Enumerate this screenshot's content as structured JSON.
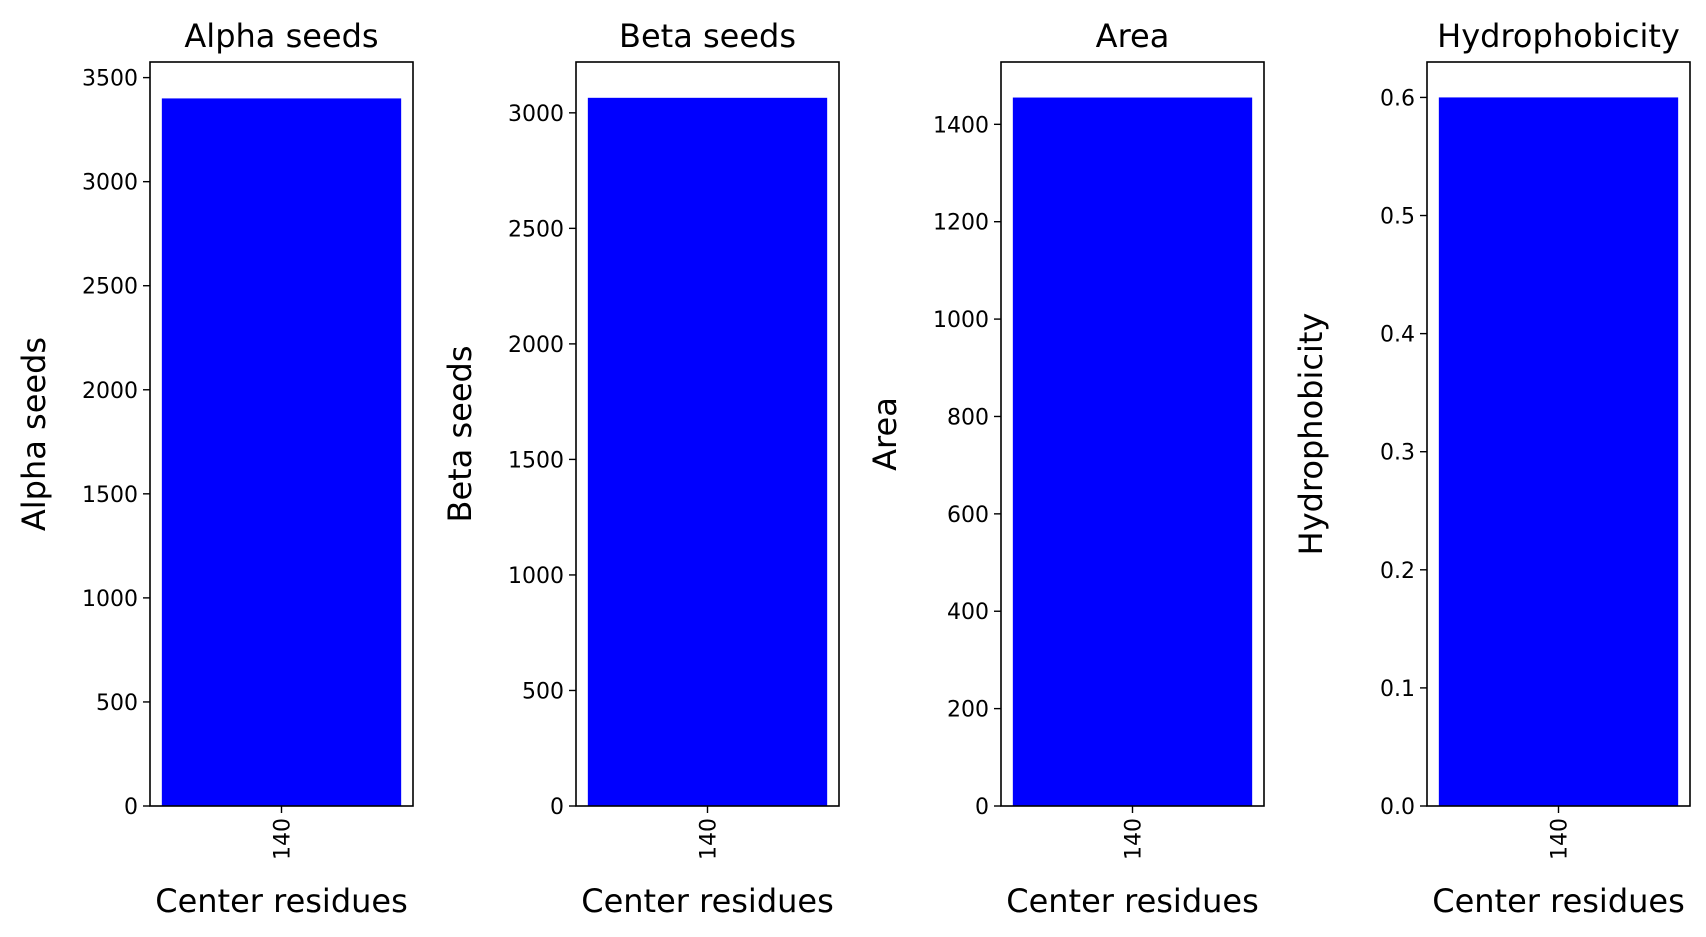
{
  "chart_data": [
    {
      "type": "bar",
      "title": "Alpha seeds",
      "xlabel": "Center residues",
      "ylabel": "Alpha seeds",
      "categories": [
        "140"
      ],
      "values": [
        3400
      ],
      "ylim": [
        0,
        3575
      ],
      "yticks": [
        0,
        500,
        1000,
        1500,
        2000,
        2500,
        3000,
        3500
      ],
      "ytick_labels": [
        "0",
        "500",
        "1000",
        "1500",
        "2000",
        "2500",
        "3000",
        "3500"
      ],
      "bar_color": "#0000ff"
    },
    {
      "type": "bar",
      "title": "Beta seeds",
      "xlabel": "Center residues",
      "ylabel": "Beta seeds",
      "categories": [
        "140"
      ],
      "values": [
        3065
      ],
      "ylim": [
        0,
        3220
      ],
      "yticks": [
        0,
        500,
        1000,
        1500,
        2000,
        2500,
        3000
      ],
      "ytick_labels": [
        "0",
        "500",
        "1000",
        "1500",
        "2000",
        "2500",
        "3000"
      ],
      "bar_color": "#0000ff"
    },
    {
      "type": "bar",
      "title": "Area",
      "xlabel": "Center residues",
      "ylabel": "Area",
      "categories": [
        "140"
      ],
      "values": [
        1455
      ],
      "ylim": [
        0,
        1528
      ],
      "yticks": [
        0,
        200,
        400,
        600,
        800,
        1000,
        1200,
        1400
      ],
      "ytick_labels": [
        "0",
        "200",
        "400",
        "600",
        "800",
        "1000",
        "1200",
        "1400"
      ],
      "bar_color": "#0000ff"
    },
    {
      "type": "bar",
      "title": "Hydrophobicity",
      "xlabel": "Center residues",
      "ylabel": "Hydrophobicity",
      "categories": [
        "140"
      ],
      "values": [
        0.6
      ],
      "ylim": [
        0,
        0.63
      ],
      "yticks": [
        0,
        0.1,
        0.2,
        0.3,
        0.4,
        0.5,
        0.6
      ],
      "ytick_labels": [
        "0.0",
        "0.1",
        "0.2",
        "0.3",
        "0.4",
        "0.5",
        "0.6"
      ],
      "bar_color": "#0000ff"
    }
  ]
}
